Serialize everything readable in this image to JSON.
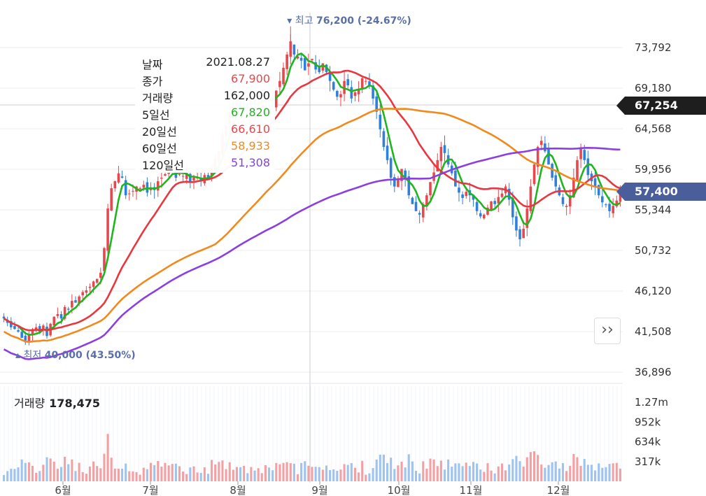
{
  "chart_data": {
    "type": "candlestick",
    "price_axis": {
      "ticks": [
        "73,792",
        "69,180",
        "64,568",
        "59,956",
        "55,344",
        "50,732",
        "46,120",
        "41,508",
        "36,896"
      ],
      "min": 36896,
      "max": 73792
    },
    "volume_axis": {
      "ticks": [
        "1.27m",
        "952k",
        "634k",
        "317k"
      ],
      "max": 1270000
    },
    "months": [
      "6월",
      "7월",
      "8월",
      "9월",
      "10월",
      "11월",
      "12월"
    ],
    "high_marker": {
      "label": "최고",
      "value": "76,200 (-24.67%)"
    },
    "low_marker": {
      "label": "최저",
      "value": "40,000 (43.50%)"
    },
    "crosshair_price": "67,254",
    "current_price": "57,400",
    "volume_label": "거래량",
    "volume_value": "178,475",
    "ma_series": [
      {
        "name": "5일선",
        "color": "#1eb51e"
      },
      {
        "name": "20일선",
        "color": "#e8373e"
      },
      {
        "name": "60일선",
        "color": "#f18a1d"
      },
      {
        "name": "120일선",
        "color": "#8a3fe0"
      }
    ],
    "tooltip": [
      {
        "key": "날짜",
        "value": "2021.08.27",
        "color": "#222222"
      },
      {
        "key": "종가",
        "value": "67,900",
        "color": "#e8474d"
      },
      {
        "key": "거래량",
        "value": "162,000",
        "color": "#222222"
      },
      {
        "key": "5일선",
        "value": "67,820",
        "color": "#1eb51e"
      },
      {
        "key": "20일선",
        "value": "66,610",
        "color": "#e8474d"
      },
      {
        "key": "60일선",
        "value": "58,933",
        "color": "#f18a1d"
      },
      {
        "key": "120일선",
        "value": "51,308",
        "color": "#8a3fe0"
      }
    ],
    "close_series": [
      43000,
      42500,
      42000,
      41800,
      41500,
      40800,
      40500,
      41200,
      41800,
      42000,
      41500,
      42200,
      41000,
      42400,
      43200,
      43500,
      43000,
      44300,
      44000,
      45000,
      44800,
      45500,
      46000,
      46200,
      46600,
      47200,
      47500,
      48200,
      51000,
      55500,
      57800,
      58600,
      59500,
      59000,
      57000,
      57200,
      57500,
      58000,
      57800,
      58200,
      57300,
      57800,
      57600,
      58600,
      59000,
      59400,
      59800,
      60200,
      59000,
      59400,
      59200,
      59500,
      58500,
      59000,
      59000,
      58600,
      59300,
      59000,
      60000,
      61200,
      62000,
      64000,
      64800,
      66500,
      67500,
      68000,
      67000,
      67300,
      67000,
      68000,
      67200,
      67600,
      68000,
      68500,
      67800,
      67200,
      68900,
      70000,
      71500,
      73000,
      74500,
      73000,
      72800,
      72300,
      71200,
      72000,
      72500,
      71300,
      71000,
      72000,
      71000,
      70000,
      69000,
      68200,
      68500,
      70000,
      69500,
      68000,
      68700,
      69000,
      70300,
      70000,
      69500,
      68000,
      66500,
      64500,
      62500,
      61000,
      59000,
      58000,
      58800,
      60000,
      59000,
      57000,
      56000,
      55200,
      54800,
      56000,
      57000,
      58500,
      59600,
      61000,
      62500,
      61800,
      60500,
      59500,
      58000,
      57300,
      56700,
      57400,
      57000,
      56500,
      55200,
      54600,
      54800,
      55600,
      56300,
      56000,
      56800,
      57200,
      58000,
      56500,
      54500,
      53000,
      52000,
      53200,
      55500,
      58000,
      60500,
      62500,
      63200,
      62000,
      60500,
      59000,
      58000,
      57000,
      56000,
      55800,
      57000,
      59000,
      61000,
      62400,
      61000,
      59300,
      58600,
      58000,
      57000,
      56200,
      55900,
      55200,
      55800,
      56400,
      57400
    ]
  }
}
